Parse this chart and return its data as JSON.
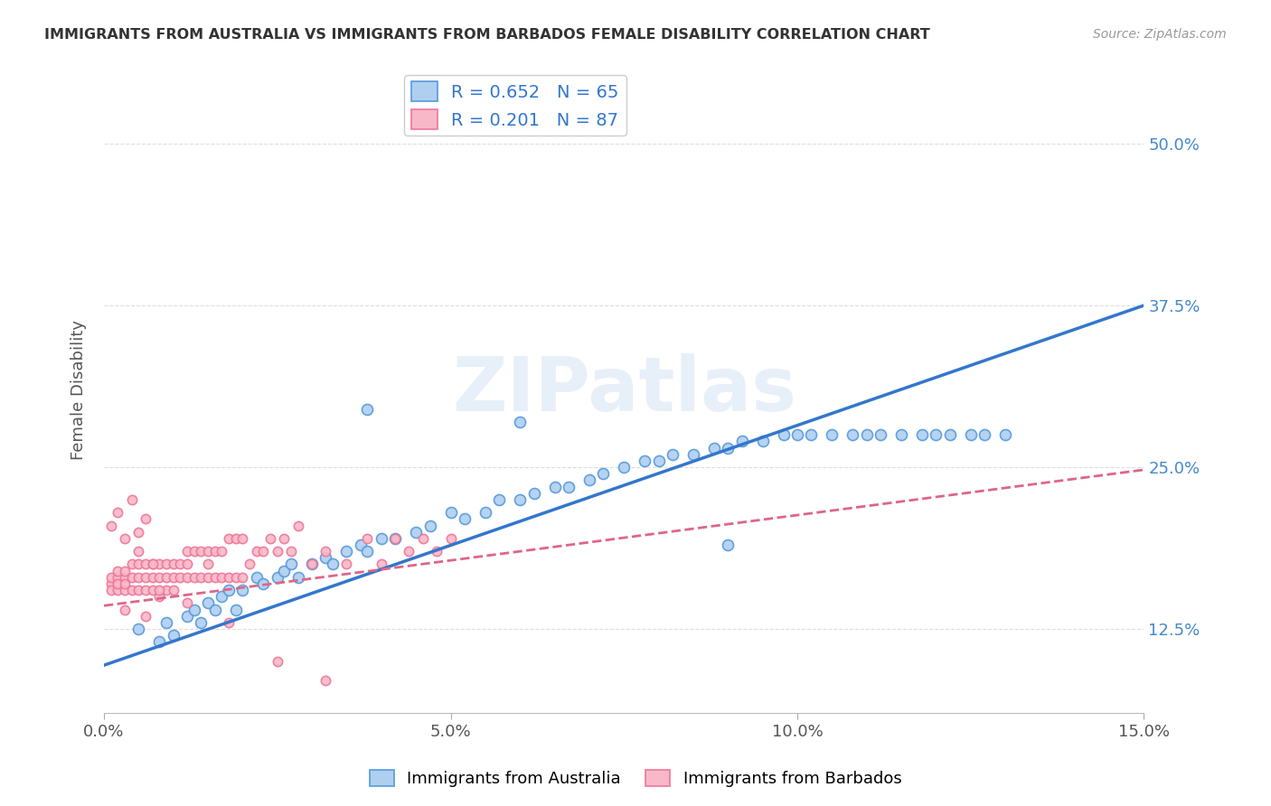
{
  "title": "IMMIGRANTS FROM AUSTRALIA VS IMMIGRANTS FROM BARBADOS FEMALE DISABILITY CORRELATION CHART",
  "source": "Source: ZipAtlas.com",
  "xlim": [
    0.0,
    0.15
  ],
  "ylim": [
    0.06,
    0.56
  ],
  "y_tick_vals": [
    0.125,
    0.25,
    0.375,
    0.5
  ],
  "y_tick_labels": [
    "12.5%",
    "25.0%",
    "37.5%",
    "50.0%"
  ],
  "x_tick_vals": [
    0.0,
    0.05,
    0.1,
    0.15
  ],
  "x_tick_labels": [
    "0.0%",
    "5.0%",
    "10.0%",
    "15.0%"
  ],
  "australia_R": 0.652,
  "australia_N": 65,
  "barbados_R": 0.201,
  "barbados_N": 87,
  "australia_face_color": "#aecff0",
  "australia_edge_color": "#5599dd",
  "barbados_face_color": "#f8b8c8",
  "barbados_edge_color": "#ee7799",
  "australia_line_color": "#3377cc",
  "barbados_line_color": "#dd6688",
  "watermark": "ZIPatlas",
  "australia_line_x0": 0.0,
  "australia_line_y0": 0.097,
  "australia_line_x1": 0.15,
  "australia_line_y1": 0.375,
  "barbados_line_x0": 0.0,
  "barbados_line_y0": 0.143,
  "barbados_line_x1": 0.15,
  "barbados_line_y1": 0.248,
  "australia_scatter_x": [
    0.005,
    0.008,
    0.009,
    0.01,
    0.012,
    0.013,
    0.014,
    0.015,
    0.016,
    0.017,
    0.018,
    0.019,
    0.02,
    0.022,
    0.023,
    0.025,
    0.026,
    0.027,
    0.028,
    0.03,
    0.032,
    0.033,
    0.035,
    0.037,
    0.038,
    0.04,
    0.042,
    0.045,
    0.047,
    0.05,
    0.052,
    0.055,
    0.057,
    0.06,
    0.062,
    0.065,
    0.067,
    0.07,
    0.072,
    0.075,
    0.078,
    0.08,
    0.082,
    0.085,
    0.088,
    0.09,
    0.092,
    0.095,
    0.098,
    0.1,
    0.102,
    0.105,
    0.108,
    0.11,
    0.112,
    0.115,
    0.118,
    0.12,
    0.122,
    0.125,
    0.127,
    0.13,
    0.038,
    0.06,
    0.09
  ],
  "australia_scatter_y": [
    0.125,
    0.115,
    0.13,
    0.12,
    0.135,
    0.14,
    0.13,
    0.145,
    0.14,
    0.15,
    0.155,
    0.14,
    0.155,
    0.165,
    0.16,
    0.165,
    0.17,
    0.175,
    0.165,
    0.175,
    0.18,
    0.175,
    0.185,
    0.19,
    0.185,
    0.195,
    0.195,
    0.2,
    0.205,
    0.215,
    0.21,
    0.215,
    0.225,
    0.225,
    0.23,
    0.235,
    0.235,
    0.24,
    0.245,
    0.25,
    0.255,
    0.255,
    0.26,
    0.26,
    0.265,
    0.265,
    0.27,
    0.27,
    0.275,
    0.275,
    0.275,
    0.275,
    0.275,
    0.275,
    0.275,
    0.275,
    0.275,
    0.275,
    0.275,
    0.275,
    0.275,
    0.275,
    0.295,
    0.285,
    0.19
  ],
  "barbados_scatter_x": [
    0.001,
    0.001,
    0.001,
    0.002,
    0.002,
    0.002,
    0.002,
    0.003,
    0.003,
    0.003,
    0.003,
    0.004,
    0.004,
    0.004,
    0.005,
    0.005,
    0.005,
    0.005,
    0.006,
    0.006,
    0.006,
    0.007,
    0.007,
    0.007,
    0.008,
    0.008,
    0.008,
    0.009,
    0.009,
    0.009,
    0.01,
    0.01,
    0.01,
    0.011,
    0.011,
    0.012,
    0.012,
    0.012,
    0.013,
    0.013,
    0.014,
    0.014,
    0.015,
    0.015,
    0.016,
    0.016,
    0.017,
    0.017,
    0.018,
    0.018,
    0.019,
    0.019,
    0.02,
    0.02,
    0.021,
    0.022,
    0.023,
    0.024,
    0.025,
    0.026,
    0.027,
    0.028,
    0.03,
    0.032,
    0.035,
    0.038,
    0.04,
    0.042,
    0.044,
    0.046,
    0.048,
    0.05,
    0.008,
    0.015,
    0.003,
    0.006,
    0.012,
    0.018,
    0.025,
    0.032,
    0.001,
    0.002,
    0.003,
    0.004,
    0.005,
    0.006,
    0.007
  ],
  "barbados_scatter_y": [
    0.16,
    0.155,
    0.165,
    0.155,
    0.165,
    0.16,
    0.17,
    0.155,
    0.165,
    0.16,
    0.17,
    0.155,
    0.165,
    0.175,
    0.155,
    0.165,
    0.175,
    0.185,
    0.155,
    0.165,
    0.175,
    0.155,
    0.165,
    0.175,
    0.15,
    0.165,
    0.175,
    0.155,
    0.165,
    0.175,
    0.155,
    0.165,
    0.175,
    0.165,
    0.175,
    0.165,
    0.175,
    0.185,
    0.165,
    0.185,
    0.165,
    0.185,
    0.165,
    0.185,
    0.165,
    0.185,
    0.165,
    0.185,
    0.165,
    0.195,
    0.165,
    0.195,
    0.165,
    0.195,
    0.175,
    0.185,
    0.185,
    0.195,
    0.185,
    0.195,
    0.185,
    0.205,
    0.175,
    0.185,
    0.175,
    0.195,
    0.175,
    0.195,
    0.185,
    0.195,
    0.185,
    0.195,
    0.155,
    0.175,
    0.14,
    0.135,
    0.145,
    0.13,
    0.1,
    0.085,
    0.205,
    0.215,
    0.195,
    0.225,
    0.2,
    0.21,
    0.175
  ]
}
